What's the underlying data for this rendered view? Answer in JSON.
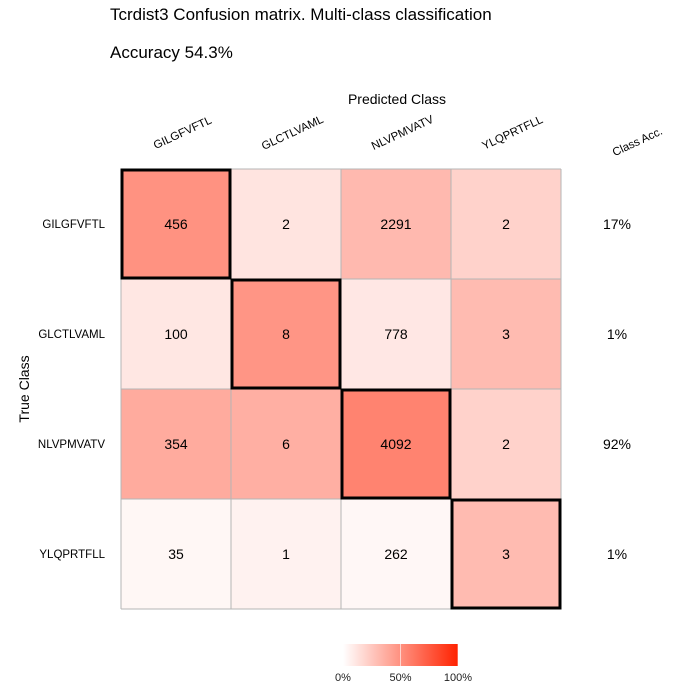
{
  "chart_data": {
    "type": "heatmap",
    "title": "Tcrdist3 Confusion matrix. Multi-class classification",
    "subtitle": "Accuracy 54.3%",
    "xlabel": "Predicted Class",
    "ylabel": "True Class",
    "classes": [
      "GILGFVFTL",
      "GLCTLVAML",
      "NLVPMVATV",
      "YLQPRTFLL"
    ],
    "class_acc_header": "Class Acc.",
    "matrix": [
      [
        456,
        2,
        2291,
        2
      ],
      [
        100,
        8,
        778,
        3
      ],
      [
        354,
        6,
        4092,
        2
      ],
      [
        35,
        1,
        262,
        3
      ]
    ],
    "class_acc": [
      "17%",
      "1%",
      "92%",
      "1%"
    ],
    "legend": {
      "ticks": [
        "0%",
        "50%",
        "100%"
      ],
      "colors": [
        "#ffffff",
        "#ff2200"
      ]
    },
    "diagonal_highlighted": true,
    "grid": true
  }
}
